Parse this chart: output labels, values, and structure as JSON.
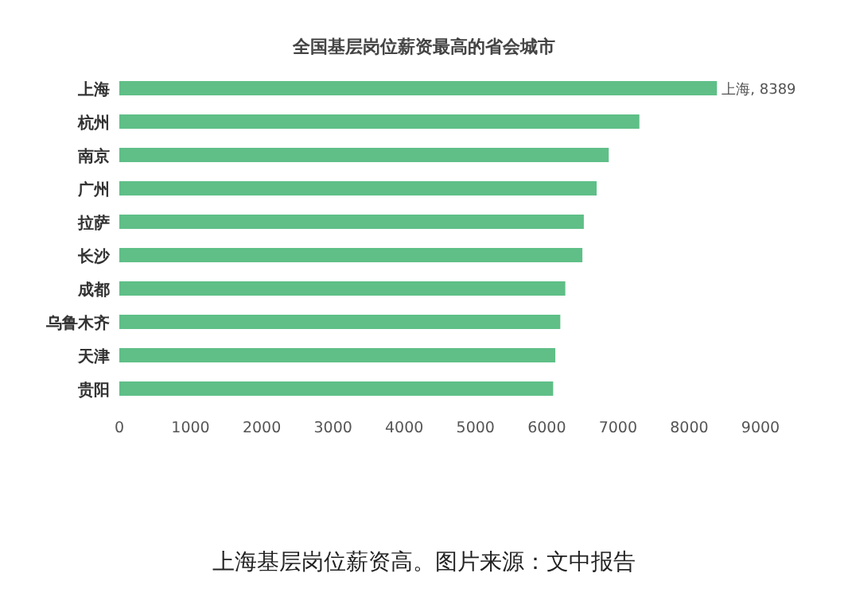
{
  "chart_data": {
    "type": "bar",
    "orientation": "horizontal",
    "title": "全国基层岗位薪资最高的省会城市",
    "categories": [
      "上海",
      "杭州",
      "南京",
      "广州",
      "拉萨",
      "长沙",
      "成都",
      "乌鲁木齐",
      "天津",
      "贵阳"
    ],
    "values": [
      8389,
      7300,
      6870,
      6700,
      6520,
      6500,
      6260,
      6190,
      6120,
      6090
    ],
    "value_labels": [
      "上海, 8389",
      null,
      null,
      null,
      null,
      null,
      null,
      null,
      null,
      null
    ],
    "color": "#5fbf87",
    "xlim": [
      0,
      9000
    ],
    "xticks": [
      0,
      1000,
      2000,
      3000,
      4000,
      5000,
      6000,
      7000,
      8000,
      9000
    ],
    "annotations": [
      "上海基层岗位薪资高。图片来源：文中报告"
    ]
  }
}
